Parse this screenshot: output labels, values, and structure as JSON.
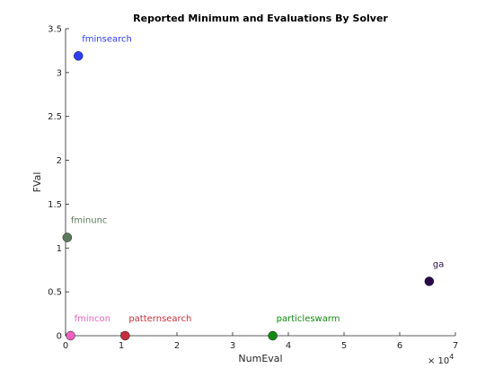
{
  "chart_data": {
    "type": "scatter",
    "title": "Reported Minimum and Evaluations By Solver",
    "xlabel": "NumEval",
    "ylabel": "FVal",
    "x_exponent_label": "× 10",
    "x_exponent": "4",
    "xlim": [
      0,
      70000
    ],
    "ylim": [
      0,
      3.5
    ],
    "x_ticks": [
      0,
      10000,
      20000,
      30000,
      40000,
      50000,
      60000,
      70000
    ],
    "x_tick_labels": [
      "0",
      "1",
      "2",
      "3",
      "4",
      "5",
      "6",
      "7"
    ],
    "y_ticks": [
      0,
      0.5,
      1,
      1.5,
      2,
      2.5,
      3,
      3.5
    ],
    "y_tick_labels": [
      "0",
      "0.5",
      "1",
      "1.5",
      "2",
      "2.5",
      "3",
      "3.5"
    ],
    "grid": false,
    "points": [
      {
        "label": "fminsearch",
        "x": 2300,
        "y": 3.19,
        "color": "#2e3df2"
      },
      {
        "label": "fminunc",
        "x": 300,
        "y": 1.12,
        "color": "#5a7a5a"
      },
      {
        "label": "ga",
        "x": 65300,
        "y": 0.62,
        "color": "#2a0a4a"
      },
      {
        "label": "fmincon",
        "x": 900,
        "y": 0.0,
        "color": "#f060c0"
      },
      {
        "label": "patternsearch",
        "x": 10700,
        "y": 0.0,
        "color": "#c4303c"
      },
      {
        "label": "particleswarm",
        "x": 37200,
        "y": 0.0,
        "color": "#108a10"
      }
    ]
  }
}
